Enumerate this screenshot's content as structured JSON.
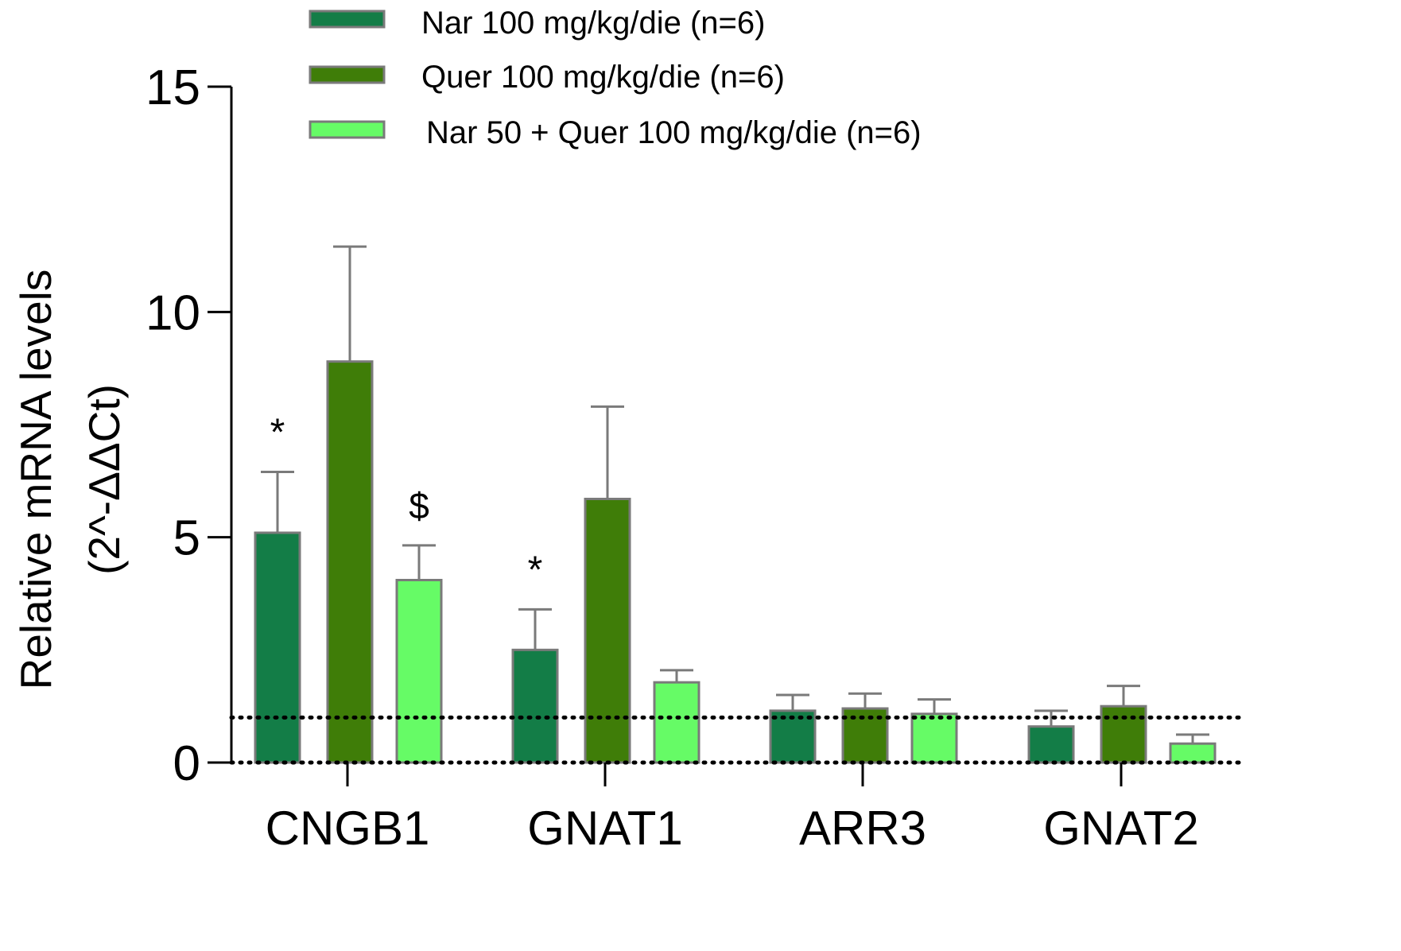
{
  "chart_data": {
    "type": "bar",
    "title": "",
    "xlabel": "",
    "ylabel": "Relative mRNA levels",
    "ylabel_sub": "(2^-ΔΔCt)",
    "ylim": [
      0,
      15
    ],
    "yticks": [
      0,
      5,
      10,
      15
    ],
    "ytick_labels": [
      "0",
      "5",
      "10",
      "15"
    ],
    "reference_line": 1,
    "legend_position": "top",
    "categories": [
      "CNGB1",
      "GNAT1",
      "ARR3",
      "GNAT2"
    ],
    "series": [
      {
        "name": "Nar 100 mg/kg/die (n=6)",
        "color": "#137d47",
        "values": [
          5.1,
          2.5,
          1.15,
          0.8
        ],
        "errors": [
          1.35,
          0.9,
          0.35,
          0.35
        ],
        "annotations": [
          "*",
          "*",
          "",
          ""
        ]
      },
      {
        "name": "Quer 100 mg/kg/die (n=6)",
        "color": "#3f7d08",
        "values": [
          8.9,
          5.85,
          1.2,
          1.25
        ],
        "errors": [
          2.55,
          2.05,
          0.33,
          0.45
        ],
        "annotations": [
          "",
          "",
          "",
          ""
        ]
      },
      {
        "name": "Nar 50 + Quer 100 mg/kg/die (n=6)",
        "color": "#66fb66",
        "values": [
          4.05,
          1.78,
          1.08,
          0.42
        ],
        "errors": [
          0.77,
          0.27,
          0.32,
          0.2
        ],
        "annotations": [
          "$",
          "",
          "",
          ""
        ]
      }
    ]
  }
}
